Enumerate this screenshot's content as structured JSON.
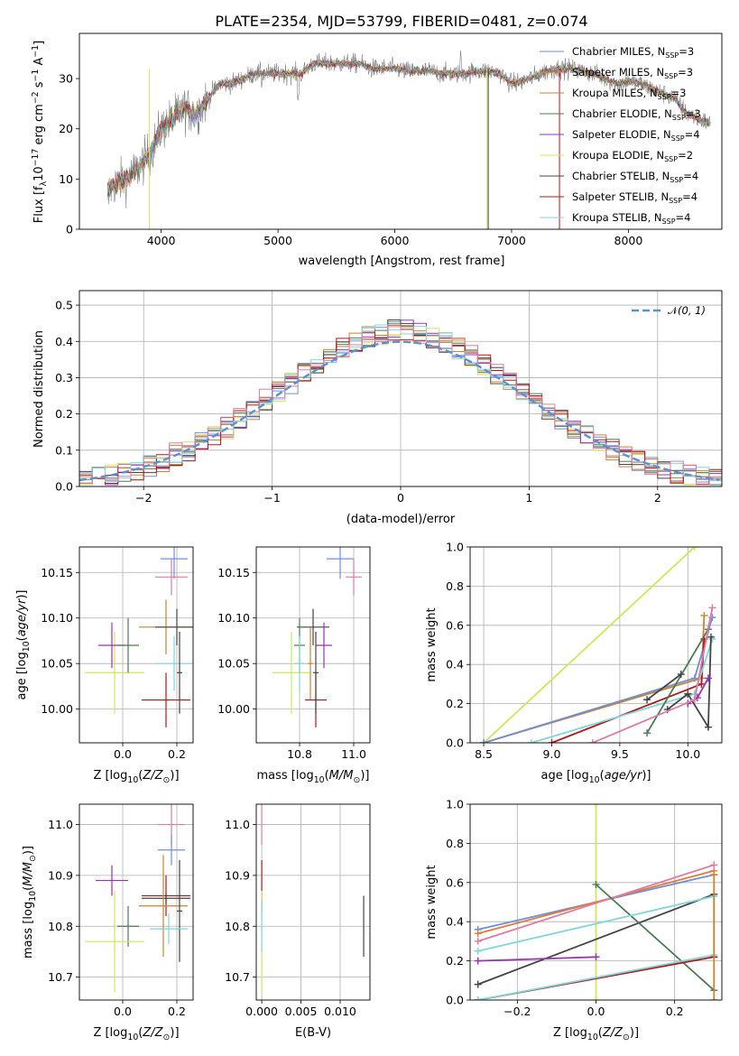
{
  "colors": {
    "Chabrier MILES": "#6f8fd8",
    "Salpeter MILES": "#e07b39",
    "Kroupa MILES": "#c9842f",
    "Chabrier ELODIE": "#4d7a55",
    "Salpeter ELODIE": "#9a32b5",
    "Kroupa ELODIE": "#d4e45a",
    "Chabrier STELIB": "#444444",
    "Salpeter STELIB": "#b01818",
    "Kroupa STELIB": "#7fd6dc",
    "pink": "#e07aa5",
    "gauss": "#5b8fd6",
    "grid": "#b0b0b0"
  },
  "chart_data": [
    {
      "id": "spectrum",
      "type": "line",
      "title": "PLATE=2354, MJD=53799, FIBERID=0481, z=0.074",
      "xlabel": "wavelength [Angstrom, rest frame]",
      "ylabel": "Flux [fλ10⁻¹⁷ erg cm⁻² s⁻¹ A⁻¹]",
      "xlim": [
        3300,
        8800
      ],
      "ylim": [
        0,
        39
      ],
      "xticks": [
        "4000",
        "5000",
        "6000",
        "7000",
        "8000"
      ],
      "yticks": [
        "0",
        "10",
        "20",
        "30"
      ],
      "grid": false,
      "legend_placement": "top-right",
      "continuum": [
        [
          3540,
          7
        ],
        [
          3600,
          9
        ],
        [
          3700,
          10
        ],
        [
          3800,
          12
        ],
        [
          3900,
          15
        ],
        [
          4000,
          20
        ],
        [
          4100,
          22
        ],
        [
          4200,
          24
        ],
        [
          4300,
          23
        ],
        [
          4400,
          26
        ],
        [
          4500,
          29
        ],
        [
          4600,
          29
        ],
        [
          4700,
          30
        ],
        [
          4800,
          31
        ],
        [
          4900,
          31
        ],
        [
          5000,
          31
        ],
        [
          5100,
          31
        ],
        [
          5200,
          31
        ],
        [
          5300,
          33
        ],
        [
          5400,
          33
        ],
        [
          5500,
          33
        ],
        [
          5600,
          33
        ],
        [
          5700,
          33
        ],
        [
          5800,
          32
        ],
        [
          5900,
          32
        ],
        [
          6000,
          32
        ],
        [
          6100,
          31.5
        ],
        [
          6200,
          31.5
        ],
        [
          6300,
          31.5
        ],
        [
          6400,
          31
        ],
        [
          6500,
          31
        ],
        [
          6600,
          31
        ],
        [
          6700,
          31.5
        ],
        [
          6800,
          31.5
        ],
        [
          6900,
          31
        ],
        [
          7000,
          29
        ],
        [
          7100,
          29.5
        ],
        [
          7200,
          30.5
        ],
        [
          7300,
          31.5
        ],
        [
          7400,
          32
        ],
        [
          7500,
          32
        ],
        [
          7600,
          31.5
        ],
        [
          7700,
          31
        ],
        [
          7800,
          30
        ],
        [
          7900,
          29
        ],
        [
          8000,
          29.5
        ],
        [
          8100,
          29
        ],
        [
          8200,
          28
        ],
        [
          8300,
          27
        ],
        [
          8400,
          26
        ],
        [
          8500,
          23
        ],
        [
          8700,
          21
        ]
      ],
      "series": [
        {
          "name": "Chabrier MILES, N_SSP=3",
          "label": "Chabrier MILES, N",
          "sub": "SSP",
          "sup": "=3",
          "key": "Chabrier MILES"
        },
        {
          "name": "Salpeter MILES, N_SSP=3",
          "label": "Salpeter MILES, N",
          "sub": "SSP",
          "sup": "=3",
          "key": "Salpeter MILES"
        },
        {
          "name": "Kroupa MILES, N_SSP=3",
          "label": "Kroupa MILES, N",
          "sub": "SSP",
          "sup": "=3",
          "key": "Kroupa MILES"
        },
        {
          "name": "Chabrier ELODIE, N_SSP=3",
          "label": "Chabrier ELODIE, N",
          "sub": "SSP",
          "sup": "=3",
          "key": "Chabrier ELODIE"
        },
        {
          "name": "Salpeter ELODIE, N_SSP=4",
          "label": "Salpeter ELODIE, N",
          "sub": "SSP",
          "sup": "=4",
          "key": "Salpeter ELODIE"
        },
        {
          "name": "Kroupa ELODIE, N_SSP=2",
          "label": "Kroupa ELODIE, N",
          "sub": "SSP",
          "sup": "=2",
          "key": "Kroupa ELODIE"
        },
        {
          "name": "Chabrier STELIB, N_SSP=4",
          "label": "Chabrier STELIB, N",
          "sub": "SSP",
          "sup": "=4",
          "key": "Chabrier STELIB"
        },
        {
          "name": "Salpeter STELIB, N_SSP=4",
          "label": "Salpeter STELIB, N",
          "sub": "SSP",
          "sup": "=4",
          "key": "Salpeter STELIB"
        },
        {
          "name": "Kroupa STELIB, N_SSP=4",
          "label": "Kroupa STELIB, N",
          "sub": "SSP",
          "sup": "=4",
          "key": "Kroupa STELIB"
        }
      ],
      "drops": [
        {
          "key": "Kroupa ELODIE",
          "x": 3900
        },
        {
          "key": "Kroupa ELODIE",
          "x": 6790
        },
        {
          "key": "Chabrier STELIB",
          "x": 6800
        },
        {
          "key": "Salpeter STELIB",
          "x": 7410
        }
      ]
    },
    {
      "id": "residuals",
      "type": "line",
      "xlabel": "(data-model)/error",
      "ylabel": "Normed distribution",
      "xlim": [
        -2.5,
        2.5
      ],
      "ylim": [
        0,
        0.54
      ],
      "xticks": [
        "−2",
        "−1",
        "0",
        "1",
        "2"
      ],
      "yticks": [
        "0.0",
        "0.1",
        "0.2",
        "0.3",
        "0.4",
        "0.5"
      ],
      "grid": true,
      "legend": "N(0, 1)",
      "legend_placement": "top-right",
      "bin_width": 0.1,
      "series": [
        {
          "key": "Chabrier MILES",
          "name": "Chabrier MILES"
        },
        {
          "key": "Salpeter MILES",
          "name": "Salpeter MILES"
        },
        {
          "key": "Kroupa MILES",
          "name": "Kroupa MILES"
        },
        {
          "key": "Chabrier ELODIE",
          "name": "Chabrier ELODIE"
        },
        {
          "key": "Salpeter ELODIE",
          "name": "Salpeter ELODIE"
        },
        {
          "key": "Kroupa ELODIE",
          "name": "Kroupa ELODIE"
        },
        {
          "key": "Chabrier STELIB",
          "name": "Chabrier STELIB"
        },
        {
          "key": "Salpeter STELIB",
          "name": "Salpeter STELIB"
        },
        {
          "key": "Kroupa STELIB",
          "name": "Kroupa STELIB"
        }
      ]
    },
    {
      "id": "age_vs_Z",
      "type": "scatter",
      "xlabel": "Z [log10(Z/Z⊙)]",
      "ylabel": "age  [log10(age/yr)]",
      "xlim": [
        -0.16,
        0.26
      ],
      "ylim": [
        9.963,
        10.178
      ],
      "xticks": [
        "0.0",
        "0.2"
      ],
      "yticks": [
        "10.00",
        "10.05",
        "10.10",
        "10.15"
      ],
      "grid": true,
      "points": [
        {
          "key": "Chabrier MILES",
          "x": 0.19,
          "y": 10.165,
          "xerr": 0.05,
          "yerr": 0.022
        },
        {
          "key": "pink",
          "x": 0.18,
          "y": 10.145,
          "xerr": 0.06,
          "yerr": 0.02
        },
        {
          "key": "Kroupa MILES",
          "x": 0.16,
          "y": 10.09,
          "xerr": 0.1,
          "yerr": 0.03
        },
        {
          "key": "Chabrier STELIB",
          "x": 0.2,
          "y": 10.09,
          "xerr": 0.08,
          "yerr": 0.02
        },
        {
          "key": "Kroupa ELODIE",
          "x": -0.03,
          "y": 10.04,
          "xerr": 0.11,
          "yerr": 0.045
        },
        {
          "key": "Salpeter ELODIE",
          "x": -0.04,
          "y": 10.07,
          "xerr": 0.05,
          "yerr": 0.025
        },
        {
          "key": "Chabrier ELODIE",
          "x": 0.02,
          "y": 10.07,
          "xerr": 0.04,
          "yerr": 0.03
        },
        {
          "key": "Kroupa STELIB",
          "x": 0.19,
          "y": 10.05,
          "xerr": 0.07,
          "yerr": 0.03
        },
        {
          "key": "Salpeter STELIB",
          "x": 0.16,
          "y": 10.01,
          "xerr": 0.09,
          "yerr": 0.03
        },
        {
          "key": "Chabrier STELIB",
          "x": 0.21,
          "y": 10.04,
          "xerr": 0.01,
          "yerr": 0.045
        }
      ]
    },
    {
      "id": "age_vs_mass",
      "type": "scatter",
      "xlabel": "mass [log10(M/M⊙)]",
      "xlim": [
        10.64,
        11.06
      ],
      "ylim": [
        9.963,
        10.178
      ],
      "xticks": [
        "10.8",
        "11.0"
      ],
      "yticks": [
        "10.00",
        "10.05",
        "10.10",
        "10.15"
      ],
      "grid": true,
      "points": [
        {
          "key": "Chabrier MILES",
          "x": 10.95,
          "y": 10.165,
          "xerr": 0.05,
          "yerr": 0.022
        },
        {
          "key": "pink",
          "x": 11.0,
          "y": 10.145,
          "xerr": 0.03,
          "yerr": 0.02
        },
        {
          "key": "Kroupa ELODIE",
          "x": 10.77,
          "y": 10.04,
          "xerr": 0.07,
          "yerr": 0.045
        },
        {
          "key": "Chabrier STELIB",
          "x": 10.85,
          "y": 10.09,
          "xerr": 0.06,
          "yerr": 0.02
        },
        {
          "key": "Chabrier ELODIE",
          "x": 10.8,
          "y": 10.07,
          "xerr": 0.02,
          "yerr": 0.03
        },
        {
          "key": "Salpeter ELODIE",
          "x": 10.89,
          "y": 10.07,
          "xerr": 0.03,
          "yerr": 0.025
        },
        {
          "key": "Kroupa STELIB",
          "x": 10.8,
          "y": 10.05,
          "xerr": 0.02,
          "yerr": 0.03
        },
        {
          "key": "Kroupa MILES",
          "x": 10.84,
          "y": 10.05,
          "xerr": 0.01,
          "yerr": 0.04
        },
        {
          "key": "Salpeter STELIB",
          "x": 10.86,
          "y": 10.01,
          "xerr": 0.04,
          "yerr": 0.03
        },
        {
          "key": "Chabrier STELIB",
          "x": 10.86,
          "y": 10.04,
          "xerr": 0.01,
          "yerr": 0.045
        }
      ]
    },
    {
      "id": "weight_vs_age",
      "type": "line",
      "xlabel": "age  [log10(age/yr)]",
      "ylabel": "mass weight",
      "xlim": [
        8.4,
        10.25
      ],
      "ylim": [
        0,
        1
      ],
      "xticks": [
        "8.5",
        "9.0",
        "9.5",
        "10.0"
      ],
      "yticks": [
        "0.0",
        "0.2",
        "0.4",
        "0.6",
        "0.8",
        "1.0"
      ],
      "grid": true,
      "series": [
        {
          "key": "Kroupa ELODIE",
          "points": [
            [
              8.5,
              0.0
            ],
            [
              10.05,
              1.0
            ]
          ]
        },
        {
          "key": "Kroupa MILES",
          "points": [
            [
              8.5,
              0.0
            ],
            [
              10.1,
              0.33
            ],
            [
              10.12,
              0.65
            ]
          ]
        },
        {
          "key": "Chabrier MILES",
          "points": [
            [
              8.5,
              0.0
            ],
            [
              10.05,
              0.33
            ],
            [
              10.18,
              0.64
            ]
          ]
        },
        {
          "key": "Salpeter STELIB",
          "points": [
            [
              9.0,
              0.0
            ],
            [
              10.1,
              0.3
            ],
            [
              10.12,
              0.53
            ]
          ]
        },
        {
          "key": "Kroupa STELIB",
          "points": [
            [
              8.85,
              0.0
            ],
            [
              10.05,
              0.25
            ],
            [
              10.18,
              0.53
            ]
          ]
        },
        {
          "key": "Chabrier ELODIE",
          "points": [
            [
              9.7,
              0.05
            ],
            [
              10.15,
              0.58
            ]
          ]
        },
        {
          "key": "Chabrier STELIB",
          "points": [
            [
              9.85,
              0.17
            ],
            [
              10.0,
              0.25
            ],
            [
              10.15,
              0.08
            ],
            [
              10.17,
              0.54
            ]
          ]
        },
        {
          "key": "Salpeter ELODIE",
          "points": [
            [
              10.0,
              0.2
            ],
            [
              10.07,
              0.23
            ],
            [
              10.15,
              0.33
            ]
          ]
        },
        {
          "key": "pink",
          "points": [
            [
              9.3,
              0.0
            ],
            [
              10.05,
              0.22
            ],
            [
              10.18,
              0.69
            ]
          ]
        },
        {
          "key": "Chabrier STELIB",
          "points": [
            [
              9.7,
              0.22
            ],
            [
              9.95,
              0.35
            ]
          ]
        }
      ]
    },
    {
      "id": "mass_vs_Z",
      "type": "scatter",
      "xlabel": "Z [log10(Z/Z⊙)]",
      "ylabel": "mass [log10(M/M⊙)]",
      "xlim": [
        -0.16,
        0.26
      ],
      "ylim": [
        10.655,
        11.04
      ],
      "xticks": [
        "0.0",
        "0.2"
      ],
      "yticks": [
        "10.7",
        "10.8",
        "10.9",
        "11.0"
      ],
      "grid": true,
      "points": [
        {
          "key": "pink",
          "x": 0.18,
          "y": 11.0,
          "xerr": 0.05,
          "yerr": 0.04
        },
        {
          "key": "Chabrier MILES",
          "x": 0.18,
          "y": 10.95,
          "xerr": 0.05,
          "yerr": 0.03
        },
        {
          "key": "Salpeter ELODIE",
          "x": -0.04,
          "y": 10.89,
          "xerr": 0.06,
          "yerr": 0.03
        },
        {
          "key": "Salpeter STELIB",
          "x": 0.16,
          "y": 10.86,
          "xerr": 0.09,
          "yerr": 0.04
        },
        {
          "key": "Chabrier STELIB",
          "x": 0.16,
          "y": 10.855,
          "xerr": 0.09,
          "yerr": 0.01
        },
        {
          "key": "Kroupa MILES",
          "x": 0.15,
          "y": 10.84,
          "xerr": 0.09,
          "yerr": 0.1
        },
        {
          "key": "Chabrier STELIB",
          "x": 0.21,
          "y": 10.83,
          "xerr": 0.01,
          "yerr": 0.1
        },
        {
          "key": "Chabrier ELODIE",
          "x": 0.02,
          "y": 10.8,
          "xerr": 0.04,
          "yerr": 0.04
        },
        {
          "key": "Kroupa STELIB",
          "x": 0.17,
          "y": 10.795,
          "xerr": 0.07,
          "yerr": 0.03
        },
        {
          "key": "Kroupa ELODIE",
          "x": -0.03,
          "y": 10.77,
          "xerr": 0.11,
          "yerr": 0.1
        }
      ]
    },
    {
      "id": "mass_vs_ebv",
      "type": "scatter",
      "xlabel": "E(B-V)",
      "xlim": [
        -0.0007,
        0.0138
      ],
      "ylim": [
        10.655,
        11.04
      ],
      "xticks": [
        "0.000",
        "0.005",
        "0.010"
      ],
      "yticks": [
        "10.7",
        "10.8",
        "10.9",
        "11.0"
      ],
      "grid": true,
      "points": [
        {
          "key": "pink",
          "x": 0.0,
          "y": 11.0,
          "xerr": 0,
          "yerr": 0.04
        },
        {
          "key": "Salpeter STELIB",
          "x": 0.0,
          "y": 10.88,
          "xerr": 0,
          "yerr": 0.05
        },
        {
          "key": "Kroupa ELODIE",
          "x": 0.0,
          "y": 10.77,
          "xerr": 0,
          "yerr": 0.1
        },
        {
          "key": "Kroupa STELIB",
          "x": 0.0,
          "y": 10.8,
          "xerr": 0,
          "yerr": 0.05
        },
        {
          "key": "Chabrier STELIB",
          "x": 0.013,
          "y": 10.8,
          "xerr": 0,
          "yerr": 0.06
        }
      ]
    },
    {
      "id": "weight_vs_Z",
      "type": "line",
      "xlabel": "Z [log10(Z/Z⊙)]",
      "ylabel": "mass weight",
      "xlim": [
        -0.32,
        0.32
      ],
      "ylim": [
        0,
        1
      ],
      "xticks": [
        "−0.2",
        "0.0",
        "0.2"
      ],
      "yticks": [
        "0.0",
        "0.2",
        "0.4",
        "0.6",
        "0.8",
        "1.0"
      ],
      "grid": true,
      "series": [
        {
          "key": "Kroupa ELODIE",
          "points": [
            [
              0.0,
              0.0
            ],
            [
              0.0,
              1.0
            ]
          ]
        },
        {
          "key": "Chabrier MILES",
          "points": [
            [
              -0.3,
              0.36
            ],
            [
              0.3,
              0.64
            ]
          ]
        },
        {
          "key": "Salpeter MILES",
          "points": [
            [
              -0.3,
              0.34
            ],
            [
              0.3,
              0.66
            ]
          ]
        },
        {
          "key": "pink",
          "points": [
            [
              -0.3,
              0.3
            ],
            [
              0.3,
              0.69
            ]
          ]
        },
        {
          "key": "Chabrier STELIB",
          "points": [
            [
              -0.3,
              0.08
            ],
            [
              0.3,
              0.54
            ]
          ]
        },
        {
          "key": "Chabrier ELODIE",
          "points": [
            [
              0.0,
              0.59
            ],
            [
              0.3,
              0.05
            ]
          ]
        },
        {
          "key": "Salpeter ELODIE",
          "points": [
            [
              -0.3,
              0.2
            ],
            [
              0.0,
              0.22
            ]
          ]
        },
        {
          "key": "Salpeter STELIB",
          "points": [
            [
              -0.3,
              0.0
            ],
            [
              0.3,
              0.22
            ]
          ]
        },
        {
          "key": "Kroupa STELIB",
          "points": [
            [
              -0.3,
              0.0
            ],
            [
              0.3,
              0.23
            ],
            [
              0.3,
              0.53
            ],
            [
              -0.3,
              0.25
            ]
          ]
        },
        {
          "key": "Kroupa MILES",
          "points": [
            [
              0.3,
              0.0
            ],
            [
              0.3,
              0.64
            ]
          ]
        }
      ]
    }
  ]
}
